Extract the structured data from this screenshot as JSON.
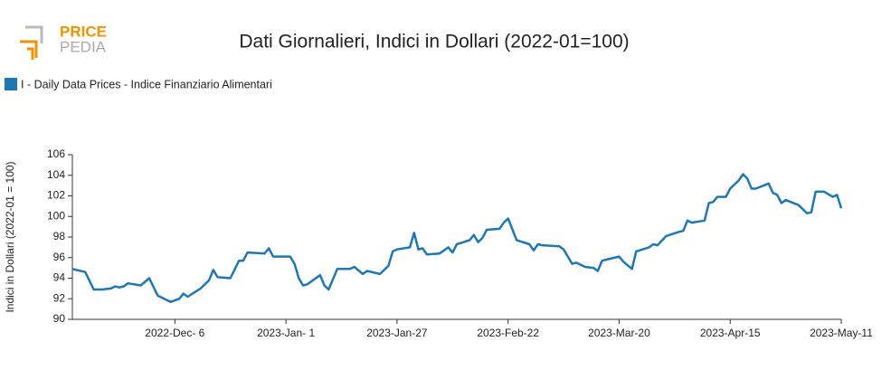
{
  "logo": {
    "line1": "PRICE",
    "line2": "PEDIA"
  },
  "chart_data": {
    "type": "line",
    "title": "Dati Giornalieri, Indici in Dollari (2022-01=100)",
    "y_label": "Indici in Dollari (2022-01 = 100)",
    "legend": "top-left",
    "grid": false,
    "xlim": [
      "2022-11-12",
      "2023-05-11"
    ],
    "xticks": [
      {
        "value": "2022-12-06",
        "label": "2022-Dec- 6"
      },
      {
        "value": "2023-01-01",
        "label": "2023-Jan- 1"
      },
      {
        "value": "2023-01-27",
        "label": "2023-Jan-27"
      },
      {
        "value": "2023-02-22",
        "label": "2023-Feb-22"
      },
      {
        "value": "2023-03-20",
        "label": "2023-Mar-20"
      },
      {
        "value": "2023-04-15",
        "label": "2023-Apr-15"
      },
      {
        "value": "2023-05-11",
        "label": "2023-May-11"
      }
    ],
    "ylim": [
      90,
      106
    ],
    "yticks": [
      90,
      92,
      94,
      96,
      98,
      100,
      102,
      104,
      106
    ],
    "x": [
      "2022-11-12",
      "2022-11-15",
      "2022-11-17",
      "2022-11-19",
      "2022-11-21",
      "2022-11-22",
      "2022-11-23",
      "2022-11-24",
      "2022-11-25",
      "2022-11-28",
      "2022-11-30",
      "2022-12-02",
      "2022-12-05",
      "2022-12-07",
      "2022-12-08",
      "2022-12-09",
      "2022-12-12",
      "2022-12-14",
      "2022-12-15",
      "2022-12-16",
      "2022-12-19",
      "2022-12-21",
      "2022-12-22",
      "2022-12-23",
      "2022-12-27",
      "2022-12-28",
      "2022-12-29",
      "2023-01-02",
      "2023-01-03",
      "2023-01-04",
      "2023-01-05",
      "2023-01-06",
      "2023-01-09",
      "2023-01-10",
      "2023-01-11",
      "2023-01-13",
      "2023-01-16",
      "2023-01-17",
      "2023-01-19",
      "2023-01-20",
      "2023-01-23",
      "2023-01-24",
      "2023-01-25",
      "2023-01-26",
      "2023-01-27",
      "2023-01-30",
      "2023-01-31",
      "2023-02-01",
      "2023-02-02",
      "2023-02-03",
      "2023-02-06",
      "2023-02-08",
      "2023-02-09",
      "2023-02-10",
      "2023-02-13",
      "2023-02-14",
      "2023-02-15",
      "2023-02-16",
      "2023-02-17",
      "2023-02-20",
      "2023-02-21",
      "2023-02-22",
      "2023-02-24",
      "2023-02-27",
      "2023-02-28",
      "2023-03-01",
      "2023-03-02",
      "2023-03-06",
      "2023-03-07",
      "2023-03-09",
      "2023-03-10",
      "2023-03-12",
      "2023-03-14",
      "2023-03-15",
      "2023-03-16",
      "2023-03-17",
      "2023-03-20",
      "2023-03-21",
      "2023-03-23",
      "2023-03-24",
      "2023-03-27",
      "2023-03-28",
      "2023-03-29",
      "2023-03-31",
      "2023-04-03",
      "2023-04-04",
      "2023-04-05",
      "2023-04-06",
      "2023-04-09",
      "2023-04-10",
      "2023-04-11",
      "2023-04-12",
      "2023-04-14",
      "2023-04-15",
      "2023-04-17",
      "2023-04-18",
      "2023-04-19",
      "2023-04-20",
      "2023-04-21",
      "2023-04-24",
      "2023-04-25",
      "2023-04-26",
      "2023-04-27",
      "2023-04-28",
      "2023-05-01",
      "2023-05-03",
      "2023-05-04",
      "2023-05-05",
      "2023-05-07",
      "2023-05-09",
      "2023-05-10",
      "2023-05-11"
    ],
    "series": [
      {
        "name": "I - Daily Data Prices - Indice Finanziario Alimentari",
        "color": "#1f77b4",
        "values": [
          94.9,
          94.6,
          92.9,
          92.9,
          93.0,
          93.2,
          93.1,
          93.2,
          93.5,
          93.3,
          94.0,
          92.3,
          91.7,
          92.0,
          92.5,
          92.2,
          93.0,
          93.8,
          94.8,
          94.1,
          94.0,
          95.7,
          95.7,
          96.5,
          96.4,
          96.9,
          96.1,
          96.1,
          95.4,
          94.0,
          93.3,
          93.4,
          94.3,
          93.3,
          92.9,
          94.9,
          94.9,
          95.1,
          94.4,
          94.7,
          94.4,
          94.8,
          95.2,
          96.6,
          96.8,
          97.0,
          98.4,
          96.8,
          96.9,
          96.3,
          96.4,
          97.0,
          96.5,
          97.3,
          97.7,
          98.2,
          97.5,
          97.9,
          98.7,
          98.8,
          99.4,
          99.8,
          97.7,
          97.3,
          96.7,
          97.3,
          97.2,
          97.1,
          96.8,
          95.4,
          95.5,
          95.1,
          95.0,
          94.7,
          95.7,
          95.8,
          96.1,
          95.6,
          94.9,
          96.6,
          97.0,
          97.3,
          97.2,
          98.1,
          98.5,
          98.6,
          99.6,
          99.4,
          99.6,
          101.3,
          101.4,
          101.9,
          101.9,
          102.7,
          103.5,
          104.1,
          103.7,
          102.7,
          102.7,
          103.2,
          102.3,
          102.1,
          101.3,
          101.6,
          101.1,
          100.3,
          100.4,
          102.4,
          102.4,
          101.9,
          102.1,
          100.8
        ]
      }
    ]
  }
}
